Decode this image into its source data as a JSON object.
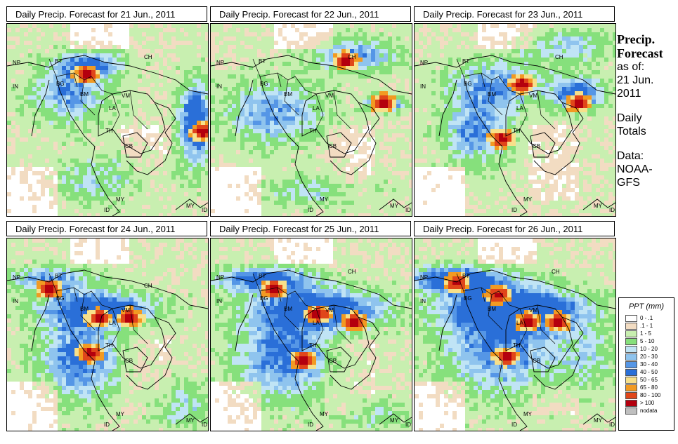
{
  "panels": [
    {
      "title": "Daily Precip. Forecast for  21 Jun., 2011"
    },
    {
      "title": "Daily Precip. Forecast for  22 Jun., 2011"
    },
    {
      "title": "Daily Precip. Forecast for  23 Jun., 2011"
    },
    {
      "title": "Daily Precip. Forecast for  24 Jun., 2011"
    },
    {
      "title": "Daily Precip. Forecast for  25 Jun., 2011"
    },
    {
      "title": "Daily Precip. Forecast for  26 Jun., 2011"
    }
  ],
  "country_labels": [
    "NP",
    "BT",
    "IN",
    "BG",
    "BM",
    "VM",
    "CH",
    "LA",
    "TH",
    "CB",
    "MY",
    "ID",
    "MY",
    "ID"
  ],
  "side": {
    "title_line1": "Precip.",
    "title_line2": "Forecast",
    "asof_line1": "as of:",
    "asof_line2": "21 Jun.",
    "asof_line3": "2011",
    "type_line1": "Daily",
    "type_line2": "Totals",
    "data_line1": "Data:",
    "data_line2": "NOAA-",
    "data_line3": "GFS"
  },
  "legend": {
    "title": "PPT (mm)",
    "items": [
      {
        "label": "0 - .1",
        "color": "#ffffff"
      },
      {
        "label": ".1 - 1",
        "color": "#f2dcc2"
      },
      {
        "label": "1 - 5",
        "color": "#c8efb0"
      },
      {
        "label": "5 - 10",
        "color": "#86e07c"
      },
      {
        "label": "10 - 20",
        "color": "#c0e4f5"
      },
      {
        "label": "20 - 30",
        "color": "#8fc4ee"
      },
      {
        "label": "30 - 40",
        "color": "#5596e6"
      },
      {
        "label": "40 - 50",
        "color": "#2a6fd8"
      },
      {
        "label": "50 - 65",
        "color": "#f7e08a"
      },
      {
        "label": "65 - 80",
        "color": "#f29a22"
      },
      {
        "label": "80 - 100",
        "color": "#e0461a"
      },
      {
        "label": "> 100",
        "color": "#b4000e"
      },
      {
        "label": "nodata",
        "color": "#bfbfbf"
      }
    ]
  }
}
